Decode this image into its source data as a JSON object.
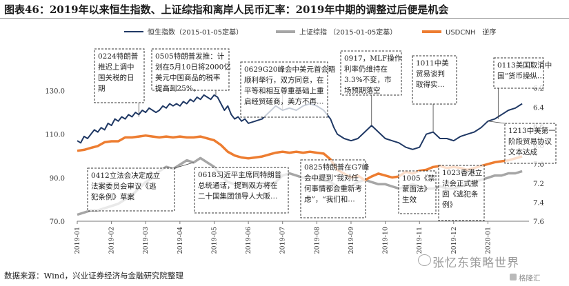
{
  "title": "图表46：2019年以来恒生指数、上证综指和离岸人民币汇率：2019年中期的调整过后便是机会",
  "source": "数据来源：Wind，兴业证券经济与金融研究院整理",
  "watermark": "张忆东策略世界",
  "watermark_small": "格隆汇",
  "colors": {
    "hsi": "#1f3864",
    "sse": "#a6a6a6",
    "cnh": "#ed7d31",
    "box_border": "#333333"
  },
  "chart_data": {
    "type": "line",
    "legend": [
      {
        "label": "恒生指数（2015-01-05定基）",
        "series": "hsi"
      },
      {
        "label": "上证综指 （2015-01-05定基）",
        "series": "sse"
      },
      {
        "label": "USDCNH　逆序",
        "series": "cnh"
      }
    ],
    "left_axis": {
      "ticks": [
        "70.0",
        "90.0",
        "110.0",
        "130.0"
      ],
      "range": [
        70,
        140
      ]
    },
    "right_axis": {
      "ticks": [
        "6.2",
        "6.4",
        "6.6",
        "6.8",
        "7.0",
        "7.2",
        "7.4",
        "7.6"
      ],
      "range": [
        6.0,
        7.6
      ],
      "reversed": true
    },
    "x_ticks": [
      "2019-01",
      "2019-02",
      "2019-03",
      "2019-04",
      "2019-05",
      "2019-06",
      "2019-07",
      "2019-08",
      "2019-09",
      "2019-10",
      "2019-11",
      "2019-12",
      "2020-01"
    ],
    "x_range": [
      0,
      13.2
    ],
    "series": [
      {
        "key": "hsi",
        "axis": "left",
        "points": [
          [
            0.0,
            107
          ],
          [
            0.1,
            106
          ],
          [
            0.2,
            109
          ],
          [
            0.3,
            108
          ],
          [
            0.4,
            110
          ],
          [
            0.5,
            112
          ],
          [
            0.6,
            111
          ],
          [
            0.7,
            113
          ],
          [
            0.8,
            112
          ],
          [
            0.9,
            115
          ],
          [
            1.0,
            114
          ],
          [
            1.1,
            117
          ],
          [
            1.2,
            116
          ],
          [
            1.3,
            118
          ],
          [
            1.4,
            117
          ],
          [
            1.5,
            119
          ],
          [
            1.6,
            118
          ],
          [
            1.7,
            120
          ],
          [
            1.8,
            119
          ],
          [
            1.9,
            121
          ],
          [
            2.0,
            120
          ],
          [
            2.1,
            122
          ],
          [
            2.2,
            121
          ],
          [
            2.3,
            120
          ],
          [
            2.4,
            121
          ],
          [
            2.5,
            123
          ],
          [
            2.6,
            122
          ],
          [
            2.7,
            124
          ],
          [
            2.8,
            123
          ],
          [
            2.9,
            124
          ],
          [
            3.0,
            123
          ],
          [
            3.1,
            125
          ],
          [
            3.2,
            124
          ],
          [
            3.3,
            126
          ],
          [
            3.4,
            125
          ],
          [
            3.5,
            127
          ],
          [
            3.6,
            126
          ],
          [
            3.7,
            128
          ],
          [
            3.8,
            127
          ],
          [
            3.9,
            126
          ],
          [
            4.0,
            128
          ],
          [
            4.1,
            127
          ],
          [
            4.2,
            124
          ],
          [
            4.3,
            121
          ],
          [
            4.4,
            123
          ],
          [
            4.5,
            119
          ],
          [
            4.6,
            117
          ],
          [
            4.7,
            118
          ],
          [
            4.8,
            116
          ],
          [
            4.9,
            117
          ],
          [
            5.0,
            115
          ],
          [
            5.2,
            116
          ],
          [
            5.4,
            117
          ],
          [
            5.6,
            120
          ],
          [
            5.8,
            123
          ],
          [
            6.0,
            121
          ],
          [
            6.2,
            122
          ],
          [
            6.4,
            121
          ],
          [
            6.6,
            123
          ],
          [
            6.8,
            124
          ],
          [
            7.0,
            123
          ],
          [
            7.2,
            121
          ],
          [
            7.4,
            117
          ],
          [
            7.5,
            113
          ],
          [
            7.6,
            110
          ],
          [
            7.7,
            109
          ],
          [
            7.8,
            108
          ],
          [
            8.0,
            107
          ],
          [
            8.2,
            108
          ],
          [
            8.4,
            111
          ],
          [
            8.6,
            114
          ],
          [
            8.8,
            111
          ],
          [
            9.0,
            108
          ],
          [
            9.2,
            107
          ],
          [
            9.4,
            106
          ],
          [
            9.6,
            104
          ],
          [
            9.8,
            103
          ],
          [
            10.0,
            104
          ],
          [
            10.1,
            107
          ],
          [
            10.2,
            110
          ],
          [
            10.4,
            111
          ],
          [
            10.6,
            108
          ],
          [
            10.8,
            108
          ],
          [
            11.0,
            107
          ],
          [
            11.2,
            109
          ],
          [
            11.4,
            110
          ],
          [
            11.6,
            111
          ],
          [
            11.8,
            113
          ],
          [
            12.0,
            116
          ],
          [
            12.2,
            117
          ],
          [
            12.4,
            119
          ],
          [
            12.6,
            121
          ],
          [
            12.8,
            122
          ],
          [
            13.0,
            124
          ]
        ]
      },
      {
        "key": "sse",
        "axis": "left",
        "points": [
          [
            0.0,
            73
          ],
          [
            0.2,
            74
          ],
          [
            0.4,
            75
          ],
          [
            0.6,
            75
          ],
          [
            0.8,
            76
          ],
          [
            1.0,
            77
          ],
          [
            1.2,
            78
          ],
          [
            1.4,
            80
          ],
          [
            1.6,
            82
          ],
          [
            1.8,
            85
          ],
          [
            2.0,
            88
          ],
          [
            2.2,
            90
          ],
          [
            2.4,
            93
          ],
          [
            2.6,
            95
          ],
          [
            2.8,
            94
          ],
          [
            3.0,
            96
          ],
          [
            3.2,
            98
          ],
          [
            3.4,
            97
          ],
          [
            3.6,
            99
          ],
          [
            3.8,
            97
          ],
          [
            4.0,
            95
          ],
          [
            4.2,
            91
          ],
          [
            4.4,
            88
          ],
          [
            4.6,
            87
          ],
          [
            4.8,
            88
          ],
          [
            5.0,
            86
          ],
          [
            5.2,
            86
          ],
          [
            5.4,
            86
          ],
          [
            5.6,
            87
          ],
          [
            5.8,
            88
          ],
          [
            6.0,
            91
          ],
          [
            6.2,
            92
          ],
          [
            6.4,
            91
          ],
          [
            6.6,
            90
          ],
          [
            6.8,
            90
          ],
          [
            7.0,
            89
          ],
          [
            7.2,
            89
          ],
          [
            7.4,
            88
          ],
          [
            7.6,
            86
          ],
          [
            7.8,
            85
          ],
          [
            8.0,
            86
          ],
          [
            8.2,
            88
          ],
          [
            8.4,
            89
          ],
          [
            8.6,
            88
          ],
          [
            8.8,
            87
          ],
          [
            9.0,
            87
          ],
          [
            9.2,
            86
          ],
          [
            9.4,
            85
          ],
          [
            9.6,
            86
          ],
          [
            9.8,
            87
          ],
          [
            10.0,
            86
          ],
          [
            10.2,
            85
          ],
          [
            10.4,
            85
          ],
          [
            10.6,
            86
          ],
          [
            10.8,
            85
          ],
          [
            11.0,
            85
          ],
          [
            11.2,
            86
          ],
          [
            11.4,
            87
          ],
          [
            11.6,
            88
          ],
          [
            11.8,
            89
          ],
          [
            12.0,
            90
          ],
          [
            12.2,
            91
          ],
          [
            12.4,
            91
          ],
          [
            12.6,
            92
          ],
          [
            12.8,
            92
          ],
          [
            13.0,
            93
          ]
        ]
      },
      {
        "key": "cnh",
        "axis": "right",
        "points": [
          [
            0.0,
            6.86
          ],
          [
            0.2,
            6.85
          ],
          [
            0.4,
            6.83
          ],
          [
            0.6,
            6.81
          ],
          [
            0.8,
            6.77
          ],
          [
            1.0,
            6.76
          ],
          [
            1.2,
            6.76
          ],
          [
            1.4,
            6.72
          ],
          [
            1.6,
            6.72
          ],
          [
            1.8,
            6.71
          ],
          [
            2.0,
            6.7
          ],
          [
            2.2,
            6.71
          ],
          [
            2.4,
            6.72
          ],
          [
            2.6,
            6.71
          ],
          [
            2.8,
            6.72
          ],
          [
            3.0,
            6.71
          ],
          [
            3.2,
            6.72
          ],
          [
            3.4,
            6.72
          ],
          [
            3.6,
            6.71
          ],
          [
            3.8,
            6.73
          ],
          [
            4.0,
            6.75
          ],
          [
            4.2,
            6.8
          ],
          [
            4.4,
            6.87
          ],
          [
            4.6,
            6.91
          ],
          [
            4.8,
            6.93
          ],
          [
            5.0,
            6.94
          ],
          [
            5.2,
            6.93
          ],
          [
            5.4,
            6.92
          ],
          [
            5.6,
            6.9
          ],
          [
            5.8,
            6.88
          ],
          [
            6.0,
            6.87
          ],
          [
            6.2,
            6.88
          ],
          [
            6.4,
            6.87
          ],
          [
            6.6,
            6.88
          ],
          [
            6.8,
            6.87
          ],
          [
            7.0,
            6.88
          ],
          [
            7.2,
            6.89
          ],
          [
            7.4,
            6.95
          ],
          [
            7.6,
            7.06
          ],
          [
            7.8,
            7.1
          ],
          [
            8.0,
            7.14
          ],
          [
            8.2,
            7.12
          ],
          [
            8.4,
            7.17
          ],
          [
            8.6,
            7.13
          ],
          [
            8.8,
            7.1
          ],
          [
            9.0,
            7.12
          ],
          [
            9.2,
            7.14
          ],
          [
            9.4,
            7.13
          ],
          [
            9.6,
            7.08
          ],
          [
            9.8,
            7.1
          ],
          [
            10.0,
            7.07
          ],
          [
            10.2,
            7.06
          ],
          [
            10.4,
            7.03
          ],
          [
            10.6,
            7.02
          ],
          [
            10.8,
            7.04
          ],
          [
            11.0,
            7.03
          ],
          [
            11.2,
            7.04
          ],
          [
            11.4,
            7.06
          ],
          [
            11.6,
            7.04
          ],
          [
            11.8,
            7.02
          ],
          [
            12.0,
            7.0
          ],
          [
            12.2,
            6.98
          ],
          [
            12.4,
            6.97
          ],
          [
            12.6,
            6.96
          ],
          [
            12.8,
            6.94
          ],
          [
            13.0,
            6.92
          ]
        ]
      }
    ],
    "annotations": [
      {
        "text": "0224特朗普推迟上调中国关税的日期",
        "lines": [
          "0224特朗普",
          "推迟上调中",
          "国关税的日",
          "期"
        ],
        "anchor": [
          1.8,
          118
        ]
      },
      {
        "text": "0505特朗普发推：计划在5月10日将2000亿美元中国商品的税率提高到25%。",
        "lines": [
          "0505特朗普发推：计",
          "划在5月10日将2000亿",
          "美元中国商品的税率",
          "提高到25%。"
        ],
        "anchor": [
          4.05,
          128
        ]
      },
      {
        "text": "0629G20峰会中美元首会晤顺利举行，双方同意，在平等和相互尊重基础上重启经贸磋商，美方不再…",
        "lines": [
          "0629G20峰会中美元首会晤",
          "顺利举行，双方同意，在",
          "平等和相互尊重基础上重",
          "启经贸磋商，美方不再…"
        ],
        "anchor": [
          6.0,
          121
        ]
      },
      {
        "text": "0917，MLF操作利率仍维持在3.3%不变，市场预期落空",
        "lines": [
          "0917，MLF操作",
          "利率仍维持在",
          "3.3%不变，市",
          "场预期落空"
        ],
        "anchor": [
          8.6,
          114
        ]
      },
      {
        "text": "1011中美贸易谈判取得实…",
        "lines": [
          "1011中美",
          "贸易谈判",
          "取得实…"
        ],
        "anchor": [
          10.4,
          111
        ]
      },
      {
        "text": "0113美国取消中国“货币操纵…",
        "lines": [
          "0113美国取消中",
          "国“货币操纵…"
        ],
        "anchor": [
          12.3,
          117
        ]
      },
      {
        "text": "1213中美第一阶段贸易协议文本达成",
        "lines": [
          "1213中美第一",
          "阶段贸易协议",
          "文本达成"
        ],
        "anchor": [
          12.0,
          116
        ]
      },
      {
        "text": "0412立法会决定成立法案委员会审议《逃犯条例》草案",
        "lines": [
          "0412立法会决定成立",
          "法案委员会审议《逃",
          "犯条例》草案"
        ],
        "anchor": [
          3.4,
          97
        ]
      },
      {
        "text": "0618习近平主席同特朗普总统通话，提到双方将在二十国集团领导人大阪…",
        "lines": [
          "0618习近平主席同特朗普",
          "总统通话，提到双方将在",
          "二十国集团领导人大阪…"
        ],
        "anchor": [
          5.6,
          87
        ]
      },
      {
        "text": "0825特朗普在G7峰会中提到“我对任何事情都会重新考虑”，“我们和…",
        "lines": [
          "0825特朗普在G7峰",
          "会中提到“我对任",
          "何事情都会重新考",
          "虑”，“我们和…"
        ],
        "anchor": [
          7.8,
          85
        ]
      },
      {
        "text": "1005《禁蒙面法》生效",
        "lines": [
          "1005《禁",
          "蒙面法》",
          "生效"
        ],
        "anchor": [
          10.15,
          85
        ]
      },
      {
        "text": "1023香港立法会正式撤回《逃犯条例》",
        "lines": [
          "1023香港立",
          "法会正式撤",
          "回《逃犯条",
          "例》"
        ],
        "anchor": [
          10.75,
          86
        ]
      }
    ]
  }
}
